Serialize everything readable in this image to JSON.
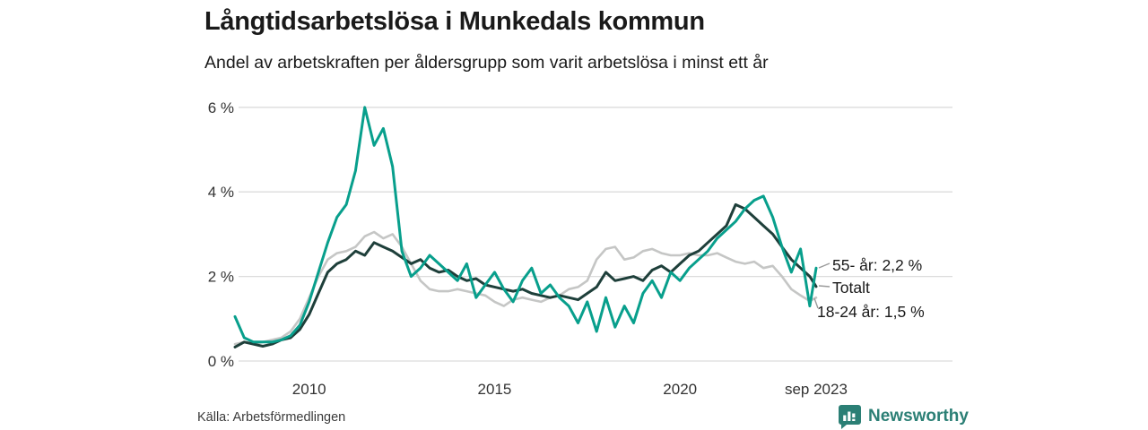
{
  "header": {
    "title": "Långtidsarbetslösa i Munkedals kommun",
    "subtitle": "Andel av arbetskraften per åldersgrupp som varit arbetslösa i minst ett år"
  },
  "footer": {
    "source": "Källa: Arbetsförmedlingen",
    "brand": "Newsworthy"
  },
  "colors": {
    "series_55": "#089f8c",
    "series_total": "#1e3f3a",
    "series_1824": "#c5c6c5",
    "grid": "#dcdcdc",
    "leader": "#9a9a9a",
    "text": "#1a1a1a",
    "tick_text": "#333333",
    "brand_teal": "#2b7f75"
  },
  "chart_data": {
    "type": "line",
    "title": "Långtidsarbetslösa i Munkedals kommun",
    "subtitle": "Andel av arbetskraften per åldersgrupp som varit arbetslösa i minst ett år",
    "xlabel": "",
    "ylabel": "%",
    "grid": "horizontal",
    "legend_position": "end-labels-right",
    "xlim": [
      2008,
      2023.75
    ],
    "ylim": [
      0,
      6.3
    ],
    "yticks": [
      0,
      2,
      4,
      6
    ],
    "ytick_labels": [
      "0 %",
      "2 %",
      "4 %",
      "6 %"
    ],
    "xticks": [
      2010,
      2015,
      2020,
      2023.67
    ],
    "xtick_labels": [
      "2010",
      "2015",
      "2020",
      "sep 2023"
    ],
    "x_unit": "decimal year, monthly data sampled quarterly",
    "x": [
      2008.0,
      2008.25,
      2008.5,
      2008.75,
      2009.0,
      2009.25,
      2009.5,
      2009.75,
      2010.0,
      2010.25,
      2010.5,
      2010.75,
      2011.0,
      2011.25,
      2011.5,
      2011.75,
      2012.0,
      2012.25,
      2012.5,
      2012.75,
      2013.0,
      2013.25,
      2013.5,
      2013.75,
      2014.0,
      2014.25,
      2014.5,
      2014.75,
      2015.0,
      2015.25,
      2015.5,
      2015.75,
      2016.0,
      2016.25,
      2016.5,
      2016.75,
      2017.0,
      2017.25,
      2017.5,
      2017.75,
      2018.0,
      2018.25,
      2018.5,
      2018.75,
      2019.0,
      2019.25,
      2019.5,
      2019.75,
      2020.0,
      2020.25,
      2020.5,
      2020.75,
      2021.0,
      2021.25,
      2021.5,
      2021.75,
      2022.0,
      2022.25,
      2022.5,
      2022.75,
      2023.0,
      2023.25,
      2023.5,
      2023.67
    ],
    "series": [
      {
        "name": "55- år",
        "end_label": "55- år: 2,2 %",
        "end_value": 2.2,
        "color": "#089f8c",
        "values": [
          1.05,
          0.55,
          0.45,
          0.45,
          0.45,
          0.5,
          0.6,
          0.85,
          1.4,
          2.1,
          2.8,
          3.4,
          3.7,
          4.5,
          6.0,
          5.1,
          5.5,
          4.6,
          2.6,
          2.0,
          2.2,
          2.5,
          2.3,
          2.1,
          1.9,
          2.3,
          1.5,
          1.8,
          2.1,
          1.7,
          1.4,
          1.9,
          2.2,
          1.6,
          1.8,
          1.5,
          1.3,
          0.9,
          1.4,
          0.7,
          1.5,
          0.8,
          1.3,
          0.9,
          1.6,
          1.9,
          1.5,
          2.1,
          1.9,
          2.2,
          2.4,
          2.6,
          2.9,
          3.1,
          3.3,
          3.6,
          3.8,
          3.9,
          3.4,
          2.7,
          2.1,
          2.65,
          1.3,
          2.2
        ]
      },
      {
        "name": "Totalt",
        "end_label": "Totalt",
        "end_value": 1.8,
        "color": "#1e3f3a",
        "values": [
          0.33,
          0.45,
          0.4,
          0.35,
          0.4,
          0.5,
          0.55,
          0.75,
          1.1,
          1.6,
          2.1,
          2.3,
          2.4,
          2.6,
          2.5,
          2.8,
          2.7,
          2.6,
          2.45,
          2.3,
          2.4,
          2.2,
          2.1,
          2.15,
          2.0,
          1.9,
          1.95,
          1.8,
          1.75,
          1.7,
          1.65,
          1.7,
          1.6,
          1.55,
          1.5,
          1.55,
          1.5,
          1.45,
          1.6,
          1.75,
          2.1,
          1.9,
          1.95,
          2.0,
          1.9,
          2.15,
          2.25,
          2.1,
          2.3,
          2.5,
          2.6,
          2.8,
          3.0,
          3.2,
          3.7,
          3.6,
          3.4,
          3.2,
          3.0,
          2.7,
          2.4,
          2.2,
          2.0,
          1.76
        ]
      },
      {
        "name": "18-24 år",
        "end_label": "18-24 år: 1,5 %",
        "end_value": 1.5,
        "color": "#c5c6c5",
        "values": [
          0.4,
          0.45,
          0.4,
          0.45,
          0.5,
          0.55,
          0.7,
          1.0,
          1.5,
          2.0,
          2.4,
          2.55,
          2.6,
          2.7,
          2.95,
          3.05,
          2.9,
          3.0,
          2.7,
          2.3,
          1.9,
          1.7,
          1.65,
          1.65,
          1.7,
          1.65,
          1.6,
          1.55,
          1.4,
          1.3,
          1.45,
          1.5,
          1.45,
          1.4,
          1.5,
          1.55,
          1.7,
          1.75,
          1.9,
          2.4,
          2.65,
          2.7,
          2.4,
          2.45,
          2.6,
          2.65,
          2.55,
          2.5,
          2.5,
          2.55,
          2.5,
          2.5,
          2.55,
          2.45,
          2.35,
          2.3,
          2.35,
          2.2,
          2.25,
          2.0,
          1.7,
          1.55,
          1.42,
          1.5
        ]
      }
    ]
  }
}
